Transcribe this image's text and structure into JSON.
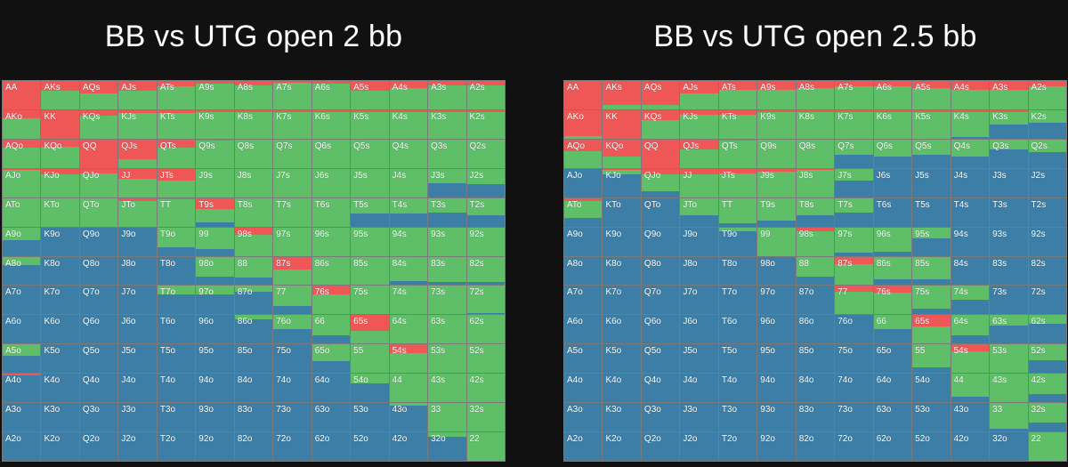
{
  "colors": {
    "fold": "#3d7ea6",
    "call": "#5fbf68",
    "raise": "#ef5757"
  },
  "chart_data": [
    {
      "type": "heatmap",
      "title": "BB vs UTG open 2 bb",
      "hands": [
        [
          "AA",
          "AKs",
          "AQs",
          "AJs",
          "ATs",
          "A9s",
          "A8s",
          "A7s",
          "A6s",
          "A5s",
          "A4s",
          "A3s",
          "A2s"
        ],
        [
          "AKo",
          "KK",
          "KQs",
          "KJs",
          "KTs",
          "K9s",
          "K8s",
          "K7s",
          "K6s",
          "K5s",
          "K4s",
          "K3s",
          "K2s"
        ],
        [
          "AQo",
          "KQo",
          "QQ",
          "QJs",
          "QTs",
          "Q9s",
          "Q8s",
          "Q7s",
          "Q6s",
          "Q5s",
          "Q4s",
          "Q3s",
          "Q2s"
        ],
        [
          "AJo",
          "KJo",
          "QJo",
          "JJ",
          "JTs",
          "J9s",
          "J8s",
          "J7s",
          "J6s",
          "J5s",
          "J4s",
          "J3s",
          "J2s"
        ],
        [
          "ATo",
          "KTo",
          "QTo",
          "JTo",
          "TT",
          "T9s",
          "T8s",
          "T7s",
          "T6s",
          "T5s",
          "T4s",
          "T3s",
          "T2s"
        ],
        [
          "A9o",
          "K9o",
          "Q9o",
          "J9o",
          "T9o",
          "99",
          "98s",
          "97s",
          "96s",
          "95s",
          "94s",
          "93s",
          "92s"
        ],
        [
          "A8o",
          "K8o",
          "Q8o",
          "J8o",
          "T8o",
          "98o",
          "88",
          "87s",
          "86s",
          "85s",
          "84s",
          "83s",
          "82s"
        ],
        [
          "A7o",
          "K7o",
          "Q7o",
          "J7o",
          "T7o",
          "97o",
          "87o",
          "77",
          "76s",
          "75s",
          "74s",
          "73s",
          "72s"
        ],
        [
          "A6o",
          "K6o",
          "Q6o",
          "J6o",
          "T6o",
          "96o",
          "86o",
          "76o",
          "66",
          "65s",
          "64s",
          "63s",
          "62s"
        ],
        [
          "A5o",
          "K5o",
          "Q5o",
          "J5o",
          "T5o",
          "95o",
          "85o",
          "75o",
          "65o",
          "55",
          "54s",
          "53s",
          "52s"
        ],
        [
          "A4o",
          "K4o",
          "Q4o",
          "J4o",
          "T4o",
          "94o",
          "84o",
          "74o",
          "64o",
          "54o",
          "44",
          "43s",
          "42s"
        ],
        [
          "A3o",
          "K3o",
          "Q3o",
          "J3o",
          "T3o",
          "93o",
          "83o",
          "73o",
          "63o",
          "53o",
          "43o",
          "33",
          "32s"
        ],
        [
          "A2o",
          "K2o",
          "Q2o",
          "J2o",
          "T2o",
          "92o",
          "82o",
          "72o",
          "62o",
          "52o",
          "42o",
          "32o",
          "22"
        ]
      ],
      "raise": [
        [
          1,
          0.35,
          0.45,
          0.35,
          0.2,
          0.1,
          0.15,
          0.05,
          0.1,
          0.35,
          0.25,
          0.15,
          0.15
        ],
        [
          0.3,
          1,
          0.2,
          0.1,
          0.1,
          0.05,
          0.05,
          0.05,
          0.05,
          0.05,
          0.05,
          0.05,
          0.05
        ],
        [
          0.3,
          0.25,
          1,
          0.7,
          0.3,
          0.05,
          0,
          0,
          0,
          0,
          0,
          0,
          0
        ],
        [
          0.05,
          0.2,
          0.15,
          0.35,
          0.4,
          0,
          0,
          0,
          0,
          0,
          0,
          0,
          0
        ],
        [
          0,
          0,
          0,
          0.1,
          0.05,
          0.4,
          0,
          0,
          0,
          0,
          0,
          0,
          0
        ],
        [
          0,
          0,
          0,
          0,
          0,
          0,
          0.25,
          0,
          0,
          0,
          0,
          0,
          0
        ],
        [
          0,
          0,
          0,
          0,
          0,
          0,
          0,
          0.45,
          0,
          0,
          0,
          0,
          0
        ],
        [
          0,
          0,
          0,
          0,
          0,
          0,
          0,
          0,
          0.3,
          0,
          0,
          0,
          0
        ],
        [
          0,
          0,
          0,
          0,
          0,
          0,
          0,
          0,
          0,
          0.55,
          0,
          0,
          0
        ],
        [
          0,
          0,
          0,
          0,
          0,
          0,
          0,
          0,
          0,
          0,
          0.3,
          0,
          0
        ],
        [
          0.05,
          0,
          0,
          0,
          0,
          0,
          0,
          0,
          0,
          0,
          0,
          0,
          0
        ],
        [
          0,
          0,
          0,
          0,
          0,
          0,
          0,
          0,
          0,
          0,
          0,
          0,
          0
        ],
        [
          0,
          0,
          0,
          0,
          0,
          0,
          0,
          0,
          0,
          0,
          0,
          0,
          0
        ]
      ],
      "call": [
        [
          0,
          0.65,
          0.55,
          0.65,
          0.8,
          0.9,
          0.85,
          0.95,
          0.9,
          0.65,
          0.75,
          0.85,
          0.85
        ],
        [
          0.7,
          0,
          0.8,
          0.9,
          0.9,
          0.95,
          0.95,
          0.95,
          0.95,
          0.95,
          0.95,
          0.95,
          0.95
        ],
        [
          0.7,
          0.75,
          0,
          0.3,
          0.7,
          0.95,
          1,
          1,
          1,
          1,
          1,
          1,
          1
        ],
        [
          0.95,
          0.8,
          0.85,
          0.65,
          0.6,
          1,
          1,
          1,
          1,
          1,
          1,
          0.5,
          0.55
        ],
        [
          1,
          1,
          1,
          0.9,
          0.95,
          0.45,
          1,
          1,
          1,
          0.55,
          0.55,
          0.5,
          0.6
        ],
        [
          0.45,
          0,
          0,
          0,
          0.7,
          0.75,
          0.75,
          1,
          1,
          1,
          1,
          1,
          1
        ],
        [
          0.3,
          0,
          0,
          0,
          0,
          0.7,
          0.75,
          0.55,
          1,
          1,
          0.85,
          0.9,
          0.9
        ],
        [
          0,
          0,
          0,
          0,
          0.3,
          0.3,
          0.2,
          0.7,
          0.7,
          1,
          1,
          1,
          0.95
        ],
        [
          0,
          0,
          0,
          0,
          0,
          0,
          0.15,
          0.5,
          0.7,
          0.45,
          1,
          1,
          1
        ],
        [
          0.4,
          0,
          0,
          0,
          0,
          0,
          0,
          0,
          0.6,
          1,
          0.7,
          1,
          1
        ],
        [
          0,
          0,
          0,
          0,
          0,
          0,
          0,
          0,
          0,
          0.35,
          1,
          1,
          1
        ],
        [
          0,
          0,
          0,
          0,
          0,
          0,
          0,
          0,
          0,
          0,
          0.1,
          1,
          1
        ],
        [
          0,
          0,
          0,
          0,
          0,
          0,
          0,
          0,
          0,
          0,
          0,
          0.15,
          1
        ]
      ]
    },
    {
      "type": "heatmap",
      "title": "BB vs UTG open 2.5 bb",
      "hands": [
        [
          "AA",
          "AKs",
          "AQs",
          "AJs",
          "ATs",
          "A9s",
          "A8s",
          "A7s",
          "A6s",
          "A5s",
          "A4s",
          "A3s",
          "A2s"
        ],
        [
          "AKo",
          "KK",
          "KQs",
          "KJs",
          "KTs",
          "K9s",
          "K8s",
          "K7s",
          "K6s",
          "K5s",
          "K4s",
          "K3s",
          "K2s"
        ],
        [
          "AQo",
          "KQo",
          "QQ",
          "QJs",
          "QTs",
          "Q9s",
          "Q8s",
          "Q7s",
          "Q6s",
          "Q5s",
          "Q4s",
          "Q3s",
          "Q2s"
        ],
        [
          "AJo",
          "KJo",
          "QJo",
          "JJ",
          "JTs",
          "J9s",
          "J8s",
          "J7s",
          "J6s",
          "J5s",
          "J4s",
          "J3s",
          "J2s"
        ],
        [
          "ATo",
          "KTo",
          "QTo",
          "JTo",
          "TT",
          "T9s",
          "T8s",
          "T7s",
          "T6s",
          "T5s",
          "T4s",
          "T3s",
          "T2s"
        ],
        [
          "A9o",
          "K9o",
          "Q9o",
          "J9o",
          "T9o",
          "99",
          "98s",
          "97s",
          "96s",
          "95s",
          "94s",
          "93s",
          "92s"
        ],
        [
          "A8o",
          "K8o",
          "Q8o",
          "J8o",
          "T8o",
          "98o",
          "88",
          "87s",
          "86s",
          "85s",
          "84s",
          "83s",
          "82s"
        ],
        [
          "A7o",
          "K7o",
          "Q7o",
          "J7o",
          "T7o",
          "97o",
          "87o",
          "77",
          "76s",
          "75s",
          "74s",
          "73s",
          "72s"
        ],
        [
          "A6o",
          "K6o",
          "Q6o",
          "J6o",
          "T6o",
          "96o",
          "86o",
          "76o",
          "66",
          "65s",
          "64s",
          "63s",
          "62s"
        ],
        [
          "A5o",
          "K5o",
          "Q5o",
          "J5o",
          "T5o",
          "95o",
          "85o",
          "75o",
          "65o",
          "55",
          "54s",
          "53s",
          "52s"
        ],
        [
          "A4o",
          "K4o",
          "Q4o",
          "J4o",
          "T4o",
          "94o",
          "84o",
          "74o",
          "64o",
          "54o",
          "44",
          "43s",
          "42s"
        ],
        [
          "A3o",
          "K3o",
          "Q3o",
          "J3o",
          "T3o",
          "93o",
          "83o",
          "73o",
          "63o",
          "53o",
          "43o",
          "33",
          "32s"
        ],
        [
          "A2o",
          "K2o",
          "Q2o",
          "J2o",
          "T2o",
          "92o",
          "82o",
          "72o",
          "62o",
          "52o",
          "42o",
          "32o",
          "22"
        ]
      ],
      "raise": [
        [
          1,
          0.85,
          0.85,
          0.45,
          0.3,
          0.3,
          0.25,
          0.2,
          0.2,
          0.25,
          0.3,
          0.3,
          0.2
        ],
        [
          0.9,
          1,
          0.35,
          0.15,
          0.15,
          0.05,
          0.05,
          0.05,
          0.05,
          0.05,
          0.05,
          0.05,
          0
        ],
        [
          0.4,
          0.6,
          1,
          0.35,
          0.05,
          0,
          0,
          0,
          0,
          0,
          0,
          0,
          0
        ],
        [
          0,
          0.05,
          0.2,
          0.2,
          0.15,
          0.1,
          0.05,
          0,
          0,
          0,
          0,
          0,
          0
        ],
        [
          0.1,
          0,
          0,
          0,
          0,
          0,
          0,
          0,
          0,
          0,
          0,
          0,
          0
        ],
        [
          0,
          0,
          0,
          0,
          0,
          0,
          0.15,
          0,
          0,
          0,
          0,
          0,
          0
        ],
        [
          0,
          0,
          0,
          0,
          0,
          0,
          0,
          0.25,
          0,
          0,
          0,
          0,
          0
        ],
        [
          0,
          0,
          0,
          0,
          0,
          0,
          0,
          0.2,
          0.25,
          0,
          0,
          0,
          0
        ],
        [
          0,
          0,
          0,
          0,
          0,
          0,
          0,
          0,
          0,
          0.4,
          0,
          0,
          0
        ],
        [
          0,
          0,
          0,
          0,
          0,
          0,
          0,
          0,
          0,
          0,
          0.25,
          0,
          0
        ],
        [
          0,
          0,
          0,
          0,
          0,
          0,
          0,
          0,
          0,
          0,
          0,
          0,
          0
        ],
        [
          0,
          0,
          0,
          0,
          0,
          0,
          0,
          0,
          0,
          0,
          0,
          0,
          0
        ],
        [
          0,
          0,
          0,
          0,
          0,
          0,
          0,
          0,
          0,
          0,
          0,
          0,
          0
        ]
      ],
      "call": [
        [
          0,
          0.15,
          0.15,
          0.55,
          0.7,
          0.7,
          0.75,
          0.8,
          0.8,
          0.75,
          0.7,
          0.7,
          0.8
        ],
        [
          0.1,
          0,
          0.65,
          0.85,
          0.85,
          0.95,
          0.95,
          0.95,
          0.95,
          0.95,
          0.9,
          0.45,
          0.45
        ],
        [
          0.6,
          0.4,
          0,
          0.65,
          0.95,
          1,
          1,
          0.55,
          0.6,
          0.55,
          0.6,
          0.35,
          0.45
        ],
        [
          0,
          0.15,
          0.6,
          0.8,
          0.85,
          0.9,
          0.95,
          0.4,
          0,
          0,
          0,
          0,
          0
        ],
        [
          0.6,
          0,
          0,
          0.6,
          0.9,
          0.8,
          0.6,
          0.5,
          0,
          0,
          0,
          0,
          0
        ],
        [
          0,
          0,
          0,
          0,
          0.15,
          1,
          0.85,
          0.9,
          0.85,
          0.4,
          0,
          0,
          0
        ],
        [
          0,
          0,
          0,
          0,
          0,
          0,
          0.7,
          0.75,
          0.8,
          0.8,
          0,
          0,
          0
        ],
        [
          0,
          0,
          0,
          0,
          0,
          0,
          0,
          0.8,
          0.75,
          0.8,
          0.5,
          0,
          0
        ],
        [
          0,
          0,
          0,
          0,
          0,
          0,
          0,
          0,
          0.5,
          0.6,
          0.7,
          0.35,
          0.3
        ],
        [
          0,
          0,
          0,
          0,
          0,
          0,
          0,
          0,
          0,
          0.8,
          0.75,
          1,
          0.55
        ],
        [
          0,
          0,
          0,
          0,
          0,
          0,
          0,
          0,
          0,
          0,
          0.8,
          1,
          0.7
        ],
        [
          0,
          0,
          0,
          0,
          0,
          0,
          0,
          0,
          0,
          0,
          0,
          0.9,
          0.7
        ],
        [
          0,
          0,
          0,
          0,
          0,
          0,
          0,
          0,
          0,
          0,
          0,
          0,
          1
        ]
      ]
    }
  ]
}
